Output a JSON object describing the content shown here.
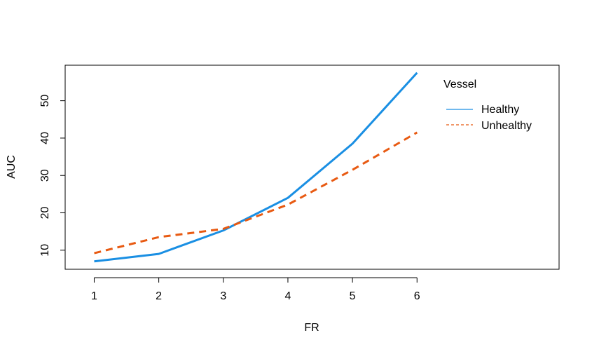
{
  "chart_data": {
    "type": "line",
    "title": "",
    "xlabel": "FR",
    "ylabel": "AUC",
    "x": [
      1,
      2,
      3,
      4,
      5,
      6
    ],
    "xlim": [
      0.55,
      8.2
    ],
    "ylim": [
      4.9,
      59.5
    ],
    "xticks": [
      1,
      2,
      3,
      4,
      5,
      6
    ],
    "yticks": [
      10,
      20,
      30,
      40,
      50
    ],
    "grid": false,
    "legend": {
      "title": "Vessel",
      "position": "top-right",
      "entries": [
        "Healthy",
        "Unhealthy"
      ]
    },
    "series": [
      {
        "name": "Healthy",
        "values": [
          7.0,
          9.0,
          15.3,
          24.0,
          38.5,
          57.5
        ],
        "color": "#1a8fe3",
        "dash": "solid"
      },
      {
        "name": "Unhealthy",
        "values": [
          9.2,
          13.5,
          15.7,
          22.2,
          31.5,
          41.5
        ],
        "color": "#e85a12",
        "dash": "dashed"
      }
    ]
  }
}
